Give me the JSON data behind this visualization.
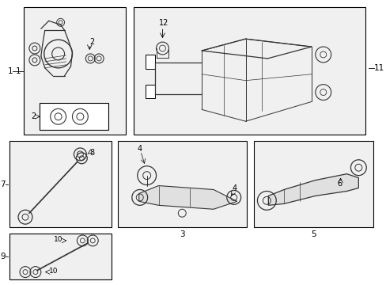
{
  "bg": "#f0f0f0",
  "white": "#ffffff",
  "border": "#000000",
  "line": "#333333",
  "text": "#000000",
  "fig_bg": "#ffffff",
  "figw": 4.89,
  "figh": 3.6,
  "dpi": 100
}
